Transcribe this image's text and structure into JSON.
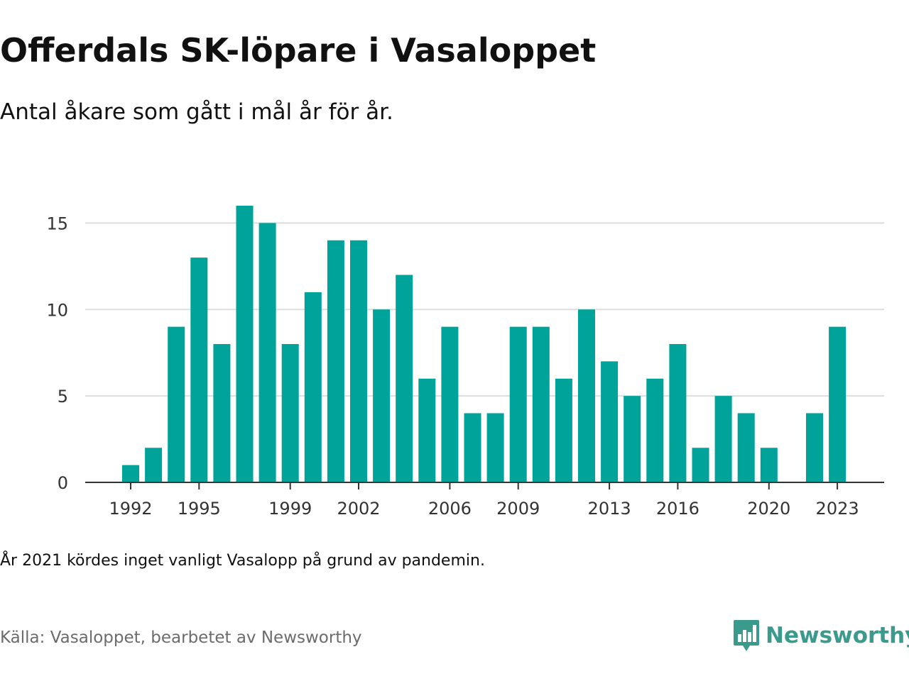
{
  "header": {
    "title": "Offerdals SK-löpare i Vasaloppet",
    "subtitle": "Antal åkare som gått i mål år för år."
  },
  "footer": {
    "note": "År 2021 kördes inget vanligt Vasalopp på grund av pandemin.",
    "source": "Källa: Vasaloppet, bearbetet av Newsworthy",
    "brand": "Newsworthy",
    "brand_icon": "newsworthy-logo-icon"
  },
  "colors": {
    "bar": "#00a39a",
    "gridline": "#dddddd",
    "axis": "#333333",
    "brand": "#3a9a8c"
  },
  "chart_data": {
    "type": "bar",
    "x": [
      1992,
      1993,
      1994,
      1995,
      1996,
      1997,
      1998,
      1999,
      2000,
      2001,
      2002,
      2003,
      2004,
      2005,
      2006,
      2007,
      2008,
      2009,
      2010,
      2011,
      2012,
      2013,
      2014,
      2015,
      2016,
      2017,
      2018,
      2019,
      2020,
      2021,
      2022,
      2023
    ],
    "values": [
      1,
      2,
      9,
      13,
      8,
      16,
      15,
      8,
      11,
      14,
      14,
      10,
      12,
      6,
      9,
      4,
      4,
      9,
      9,
      6,
      10,
      7,
      5,
      6,
      8,
      2,
      5,
      4,
      2,
      0,
      4,
      9
    ],
    "x_tick_labels": [
      "1992",
      "1995",
      "1999",
      "2002",
      "2006",
      "2009",
      "2013",
      "2016",
      "2020",
      "2023"
    ],
    "y_ticks": [
      0,
      5,
      10,
      15
    ],
    "ylim": [
      0,
      16
    ],
    "xlabel": "",
    "ylabel": "",
    "grid": true
  }
}
